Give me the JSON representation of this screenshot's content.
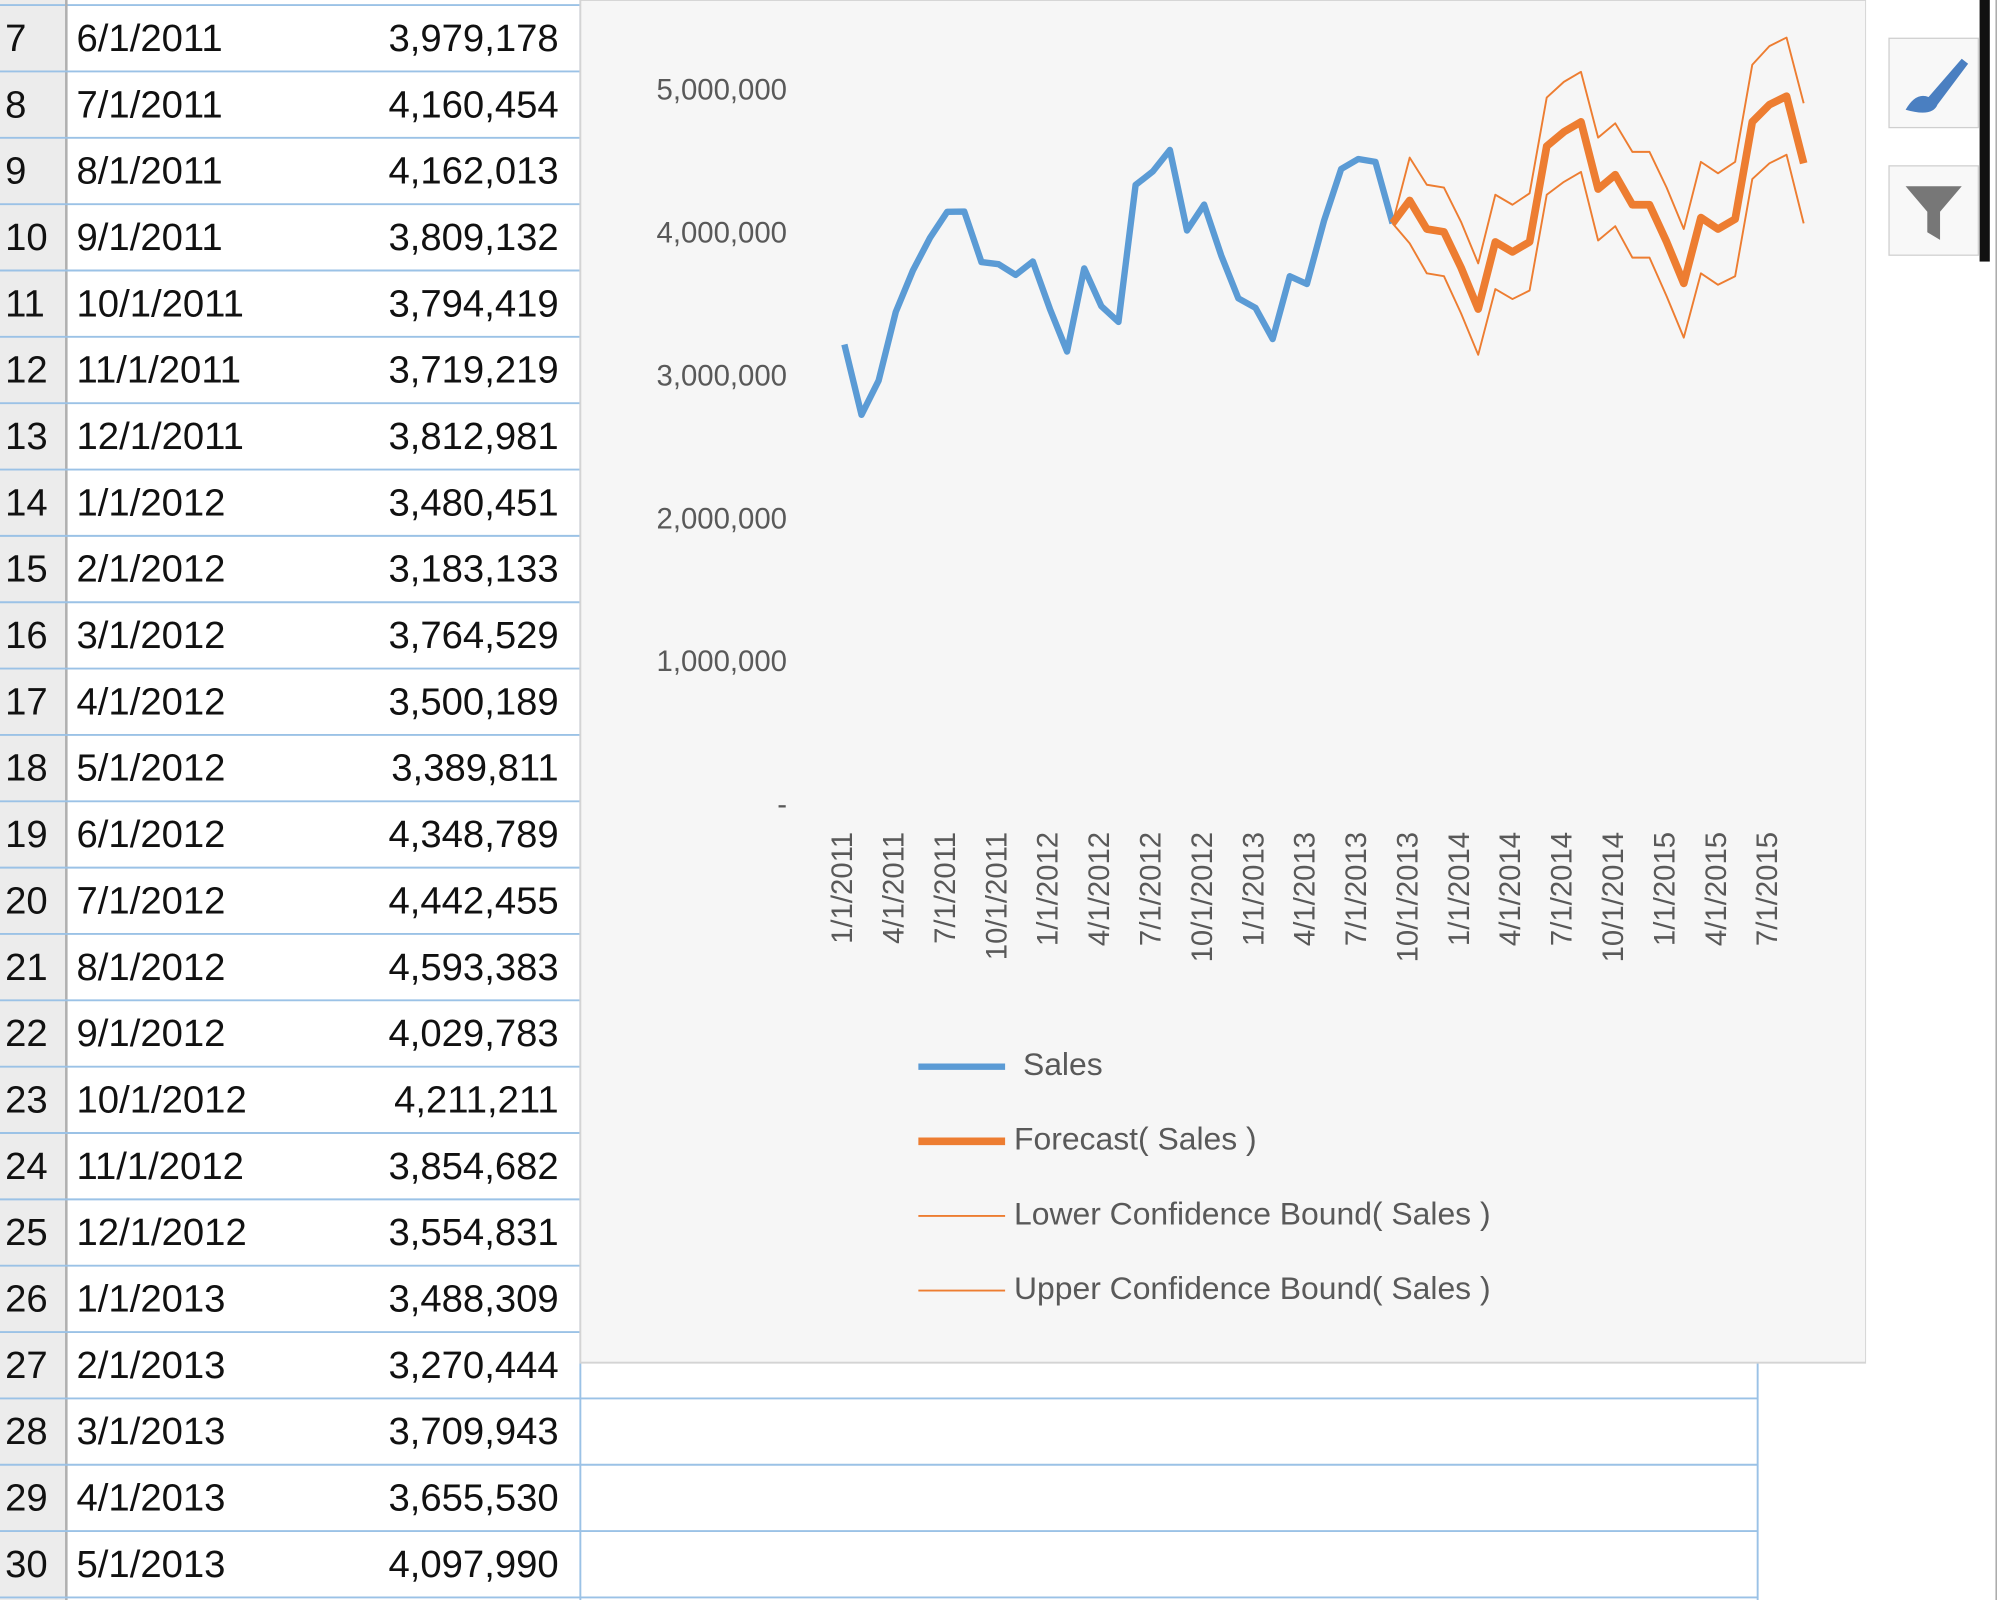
{
  "sheet": {
    "rows": [
      [
        "7",
        "6/1/2011",
        "3,979,178"
      ],
      [
        "8",
        "7/1/2011",
        "4,160,454"
      ],
      [
        "9",
        "8/1/2011",
        "4,162,013"
      ],
      [
        "10",
        "9/1/2011",
        "3,809,132"
      ],
      [
        "11",
        "10/1/2011",
        "3,794,419"
      ],
      [
        "12",
        "11/1/2011",
        "3,719,219"
      ],
      [
        "13",
        "12/1/2011",
        "3,812,981"
      ],
      [
        "14",
        "1/1/2012",
        "3,480,451"
      ],
      [
        "15",
        "2/1/2012",
        "3,183,133"
      ],
      [
        "16",
        "3/1/2012",
        "3,764,529"
      ],
      [
        "17",
        "4/1/2012",
        "3,500,189"
      ],
      [
        "18",
        "5/1/2012",
        "3,389,811"
      ],
      [
        "19",
        "6/1/2012",
        "4,348,789"
      ],
      [
        "20",
        "7/1/2012",
        "4,442,455"
      ],
      [
        "21",
        "8/1/2012",
        "4,593,383"
      ],
      [
        "22",
        "9/1/2012",
        "4,029,783"
      ],
      [
        "23",
        "10/1/2012",
        "4,211,211"
      ],
      [
        "24",
        "11/1/2012",
        "3,854,682"
      ],
      [
        "25",
        "12/1/2012",
        "3,554,831"
      ],
      [
        "26",
        "1/1/2013",
        "3,488,309"
      ],
      [
        "27",
        "2/1/2013",
        "3,270,444"
      ],
      [
        "28",
        "3/1/2013",
        "3,709,943"
      ],
      [
        "29",
        "4/1/2013",
        "3,655,530"
      ],
      [
        "30",
        "5/1/2013",
        "4,097,990"
      ]
    ]
  },
  "chart_data": {
    "type": "line",
    "categories": [
      "1/1/2011",
      null,
      null,
      "4/1/2011",
      null,
      null,
      "7/1/2011",
      null,
      null,
      "10/1/2011",
      null,
      null,
      "1/1/2012",
      null,
      null,
      "4/1/2012",
      null,
      null,
      "7/1/2012",
      null,
      null,
      "10/1/2012",
      null,
      null,
      "1/1/2013",
      null,
      null,
      "4/1/2013",
      null,
      null,
      "7/1/2013",
      null,
      null,
      "10/1/2013",
      null,
      null,
      "1/1/2014",
      null,
      null,
      "4/1/2014",
      null,
      null,
      "7/1/2014",
      null,
      null,
      "10/1/2014",
      null,
      null,
      "1/1/2015",
      null,
      null,
      "4/1/2015",
      null,
      null,
      "7/1/2015",
      null,
      null
    ],
    "series": [
      {
        "name": "Sales",
        "color": "#5b9bd5",
        "line_width": 5,
        "values": [
          3232000,
          2740000,
          2980000,
          3460000,
          3750000,
          3979178,
          4160454,
          4162013,
          3809132,
          3794419,
          3719219,
          3812981,
          3480451,
          3183133,
          3764529,
          3500189,
          3389811,
          4348789,
          4442455,
          4593383,
          4029783,
          4211211,
          3854682,
          3554831,
          3488309,
          3270444,
          3709943,
          3655530,
          4097990,
          4460000,
          4530000,
          4510000,
          4080000,
          null,
          null,
          null,
          null,
          null,
          null,
          null,
          null,
          null,
          null,
          null,
          null,
          null,
          null,
          null,
          null,
          null,
          null,
          null,
          null,
          null,
          null,
          null,
          null
        ]
      },
      {
        "name": "Forecast( Sales )",
        "color": "#ed7d31",
        "line_width": 6,
        "values": [
          null,
          null,
          null,
          null,
          null,
          null,
          null,
          null,
          null,
          null,
          null,
          null,
          null,
          null,
          null,
          null,
          null,
          null,
          null,
          null,
          null,
          null,
          null,
          null,
          null,
          null,
          null,
          null,
          null,
          null,
          null,
          null,
          4080000,
          4240000,
          4040000,
          4020000,
          3770000,
          3480000,
          3950000,
          3880000,
          3950000,
          4620000,
          4720000,
          4790000,
          4320000,
          4420000,
          4210000,
          4210000,
          3950000,
          3660000,
          4120000,
          4040000,
          4110000,
          4790000,
          4910000,
          4970000,
          4500000
        ]
      },
      {
        "name": "Lower Confidence Bound( Sales )",
        "color": "#ed7d31",
        "line_width": 1.5,
        "values": [
          null,
          null,
          null,
          null,
          null,
          null,
          null,
          null,
          null,
          null,
          null,
          null,
          null,
          null,
          null,
          null,
          null,
          null,
          null,
          null,
          null,
          null,
          null,
          null,
          null,
          null,
          null,
          null,
          null,
          null,
          null,
          null,
          4080000,
          3940000,
          3730000,
          3710000,
          3450000,
          3160000,
          3620000,
          3550000,
          3610000,
          4280000,
          4370000,
          4440000,
          3960000,
          4060000,
          3840000,
          3840000,
          3570000,
          3280000,
          3730000,
          3650000,
          3710000,
          4390000,
          4500000,
          4560000,
          4080000
        ]
      },
      {
        "name": "Upper Confidence Bound( Sales )",
        "color": "#ed7d31",
        "line_width": 1.5,
        "values": [
          null,
          null,
          null,
          null,
          null,
          null,
          null,
          null,
          null,
          null,
          null,
          null,
          null,
          null,
          null,
          null,
          null,
          null,
          null,
          null,
          null,
          null,
          null,
          null,
          null,
          null,
          null,
          null,
          null,
          null,
          null,
          null,
          4080000,
          4540000,
          4350000,
          4330000,
          4090000,
          3800000,
          4280000,
          4210000,
          4290000,
          4960000,
          5070000,
          5140000,
          4680000,
          4780000,
          4580000,
          4580000,
          4330000,
          4040000,
          4510000,
          4430000,
          4510000,
          5190000,
          5320000,
          5380000,
          4920000
        ]
      }
    ],
    "ylim": [
      0,
      5500000
    ],
    "yticks": [
      {
        "value": 0,
        "label": "-"
      },
      {
        "value": 1000000,
        "label": "1,000,000"
      },
      {
        "value": 2000000,
        "label": "2,000,000"
      },
      {
        "value": 3000000,
        "label": "3,000,000"
      },
      {
        "value": 4000000,
        "label": "4,000,000"
      },
      {
        "value": 5000000,
        "label": "5,000,000"
      }
    ],
    "grid": false,
    "legend": "bottom"
  }
}
